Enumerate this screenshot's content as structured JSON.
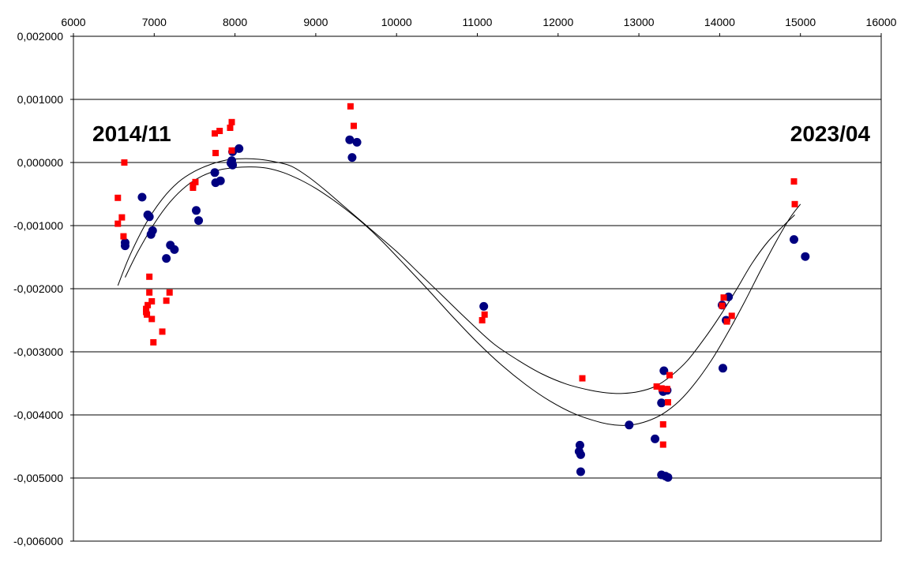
{
  "chart_data": {
    "type": "scatter",
    "xlim": [
      6000,
      16000
    ],
    "ylim": [
      -0.006,
      0.002
    ],
    "x_ticks": [
      6000,
      7000,
      8000,
      9000,
      10000,
      11000,
      12000,
      13000,
      14000,
      15000,
      16000
    ],
    "x_tick_labels": [
      "6000",
      "7000",
      "8000",
      "9000",
      "10000",
      "11000",
      "12000",
      "13000",
      "14000",
      "15000",
      "16000"
    ],
    "y_ticks": [
      0.002,
      0.001,
      0,
      -0.001,
      -0.002,
      -0.003,
      -0.004,
      -0.005,
      -0.006
    ],
    "y_tick_labels": [
      "0,002000",
      "0,001000",
      "0,000000",
      "-0,001000",
      "-0,002000",
      "-0,003000",
      "-0,004000",
      "-0,005000",
      "-0,006000"
    ],
    "x_axis_position": "top",
    "grid": "horizontal",
    "annotations": [
      "2014/11",
      "2023/04"
    ],
    "colors": {
      "series_blue": "#000080",
      "series_red": "#ff0000",
      "fit_curve": "#000000",
      "grid": "#000000"
    },
    "series": [
      {
        "marker": "circle",
        "color": "#000080",
        "points": [
          [
            6640,
            -0.00127
          ],
          [
            6640,
            -0.00132
          ],
          [
            6850,
            -0.00055
          ],
          [
            6920,
            -0.00083
          ],
          [
            6940,
            -0.00086
          ],
          [
            6960,
            -0.00114
          ],
          [
            6980,
            -0.00108
          ],
          [
            7150,
            -0.00152
          ],
          [
            7200,
            -0.00131
          ],
          [
            7250,
            -0.00138
          ],
          [
            7520,
            -0.00076
          ],
          [
            7550,
            -0.00092
          ],
          [
            7750,
            -0.00016
          ],
          [
            7760,
            -0.00032
          ],
          [
            7820,
            -0.00029
          ],
          [
            7950,
            -1e-05
          ],
          [
            7960,
            3e-05
          ],
          [
            7970,
            -4e-05
          ],
          [
            7970,
            0.00017
          ],
          [
            8050,
            0.00022
          ],
          [
            9420,
            0.00036
          ],
          [
            9450,
            8e-05
          ],
          [
            9510,
            0.00032
          ],
          [
            11080,
            -0.00228
          ],
          [
            12260,
            -0.00458
          ],
          [
            12270,
            -0.00448
          ],
          [
            12280,
            -0.00463
          ],
          [
            12280,
            -0.0049
          ],
          [
            12880,
            -0.00416
          ],
          [
            13200,
            -0.00438
          ],
          [
            13280,
            -0.00381
          ],
          [
            13280,
            -0.00495
          ],
          [
            13300,
            -0.00363
          ],
          [
            13310,
            -0.0033
          ],
          [
            13330,
            -0.00497
          ],
          [
            13350,
            -0.00361
          ],
          [
            13360,
            -0.00499
          ],
          [
            14030,
            -0.00226
          ],
          [
            14040,
            -0.00326
          ],
          [
            14080,
            -0.0025
          ],
          [
            14110,
            -0.00213
          ],
          [
            14920,
            -0.00122
          ],
          [
            15060,
            -0.00149
          ]
        ]
      },
      {
        "marker": "square",
        "color": "#ff0000",
        "points": [
          [
            6550,
            -0.00056
          ],
          [
            6550,
            -0.00097
          ],
          [
            6600,
            -0.00087
          ],
          [
            6620,
            -0.00117
          ],
          [
            6630,
            0.0
          ],
          [
            6900,
            -0.00232
          ],
          [
            6900,
            -0.00237
          ],
          [
            6910,
            -0.00241
          ],
          [
            6920,
            -0.00226
          ],
          [
            6940,
            -0.00206
          ],
          [
            6940,
            -0.00181
          ],
          [
            6970,
            -0.00248
          ],
          [
            6970,
            -0.0022
          ],
          [
            6990,
            -0.00285
          ],
          [
            7100,
            -0.00268
          ],
          [
            7150,
            -0.00219
          ],
          [
            7190,
            -0.00206
          ],
          [
            7480,
            -0.00036
          ],
          [
            7480,
            -0.0004
          ],
          [
            7510,
            -0.00031
          ],
          [
            7750,
            0.00046
          ],
          [
            7760,
            0.00015
          ],
          [
            7810,
            0.0005
          ],
          [
            7940,
            0.00055
          ],
          [
            7960,
            0.00064
          ],
          [
            7960,
            0.00019
          ],
          [
            9430,
            0.00089
          ],
          [
            9470,
            0.00058
          ],
          [
            11060,
            -0.0025
          ],
          [
            11090,
            -0.00241
          ],
          [
            12300,
            -0.00342
          ],
          [
            13220,
            -0.00355
          ],
          [
            13280,
            -0.00358
          ],
          [
            13300,
            -0.00415
          ],
          [
            13300,
            -0.00447
          ],
          [
            13350,
            -0.00359
          ],
          [
            13360,
            -0.0038
          ],
          [
            13380,
            -0.00337
          ],
          [
            14030,
            -0.00227
          ],
          [
            14050,
            -0.00214
          ],
          [
            14090,
            -0.00252
          ],
          [
            14150,
            -0.00243
          ],
          [
            14920,
            -0.0003
          ],
          [
            14930,
            -0.00066
          ]
        ]
      }
    ],
    "fit_curves": [
      {
        "color": "#000000",
        "points": [
          [
            6550,
            -0.00195
          ],
          [
            6700,
            -0.00147
          ],
          [
            6900,
            -0.00096
          ],
          [
            7100,
            -0.00058
          ],
          [
            7300,
            -0.00031
          ],
          [
            7500,
            -0.00014
          ],
          [
            7700,
            -3e-05
          ],
          [
            7900,
            4e-05
          ],
          [
            8100,
            6e-05
          ],
          [
            8300,
            5e-05
          ],
          [
            8500,
            1e-05
          ],
          [
            8700,
            -6e-05
          ],
          [
            8900,
            -0.00022
          ],
          [
            9100,
            -0.00042
          ],
          [
            9300,
            -0.00064
          ],
          [
            9500,
            -0.00086
          ],
          [
            9700,
            -0.00108
          ],
          [
            10000,
            -0.00141
          ],
          [
            10300,
            -0.00178
          ],
          [
            10600,
            -0.00215
          ],
          [
            10900,
            -0.00252
          ],
          [
            11200,
            -0.00287
          ],
          [
            11500,
            -0.00313
          ],
          [
            11800,
            -0.00335
          ],
          [
            12100,
            -0.00351
          ],
          [
            12400,
            -0.00361
          ],
          [
            12600,
            -0.00365
          ],
          [
            12800,
            -0.00366
          ],
          [
            13000,
            -0.00363
          ],
          [
            13200,
            -0.00355
          ],
          [
            13400,
            -0.00338
          ],
          [
            13600,
            -0.00314
          ],
          [
            13800,
            -0.00281
          ],
          [
            14000,
            -0.00244
          ],
          [
            14200,
            -0.00203
          ],
          [
            14400,
            -0.0016
          ],
          [
            14600,
            -0.00125
          ],
          [
            14800,
            -0.00099
          ],
          [
            14930,
            -0.00083
          ]
        ]
      },
      {
        "color": "#000000",
        "points": [
          [
            6640,
            -0.00182
          ],
          [
            6800,
            -0.00141
          ],
          [
            7000,
            -0.00097
          ],
          [
            7200,
            -0.00062
          ],
          [
            7400,
            -0.00037
          ],
          [
            7600,
            -0.00021
          ],
          [
            7800,
            -0.00012
          ],
          [
            8000,
            -8e-05
          ],
          [
            8200,
            -7e-05
          ],
          [
            8400,
            -9e-05
          ],
          [
            8600,
            -0.00016
          ],
          [
            8800,
            -0.00027
          ],
          [
            9000,
            -0.00041
          ],
          [
            9200,
            -0.00058
          ],
          [
            9400,
            -0.00077
          ],
          [
            9600,
            -0.00098
          ],
          [
            9800,
            -0.00122
          ],
          [
            10100,
            -0.00162
          ],
          [
            10400,
            -0.00203
          ],
          [
            10700,
            -0.00245
          ],
          [
            11000,
            -0.00285
          ],
          [
            11300,
            -0.00321
          ],
          [
            11600,
            -0.00352
          ],
          [
            11900,
            -0.00378
          ],
          [
            12200,
            -0.00398
          ],
          [
            12500,
            -0.00411
          ],
          [
            12700,
            -0.00416
          ],
          [
            12900,
            -0.00416
          ],
          [
            13100,
            -0.0041
          ],
          [
            13300,
            -0.00398
          ],
          [
            13500,
            -0.00378
          ],
          [
            13700,
            -0.00349
          ],
          [
            13900,
            -0.00313
          ],
          [
            14100,
            -0.0027
          ],
          [
            14300,
            -0.00223
          ],
          [
            14500,
            -0.00173
          ],
          [
            14700,
            -0.00125
          ],
          [
            14870,
            -0.00088
          ],
          [
            15000,
            -0.00066
          ]
        ]
      }
    ]
  }
}
